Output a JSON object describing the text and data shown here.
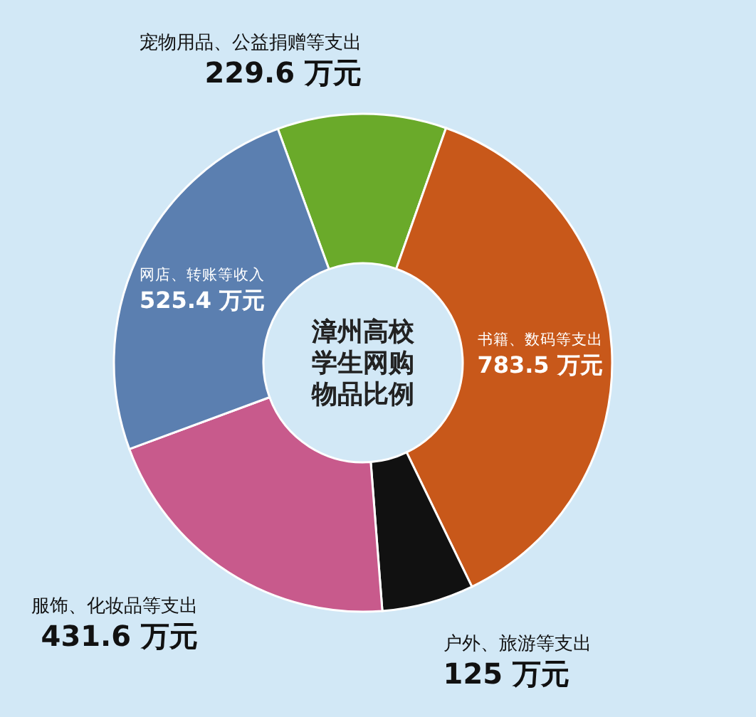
{
  "chart_data": {
    "type": "donut",
    "title": "漳州高校学生网购物品比例",
    "categories": [
      "宠物用品、公益捐赠等支出",
      "书籍、数码等支出",
      "户外、旅游等支出",
      "服饰、化妆品等支出",
      "网店、转账等收入"
    ],
    "values": [
      229.6,
      783.5,
      125,
      431.6,
      525.4
    ],
    "value_labels": [
      "229.6 万元",
      "783.5 万元",
      "125 万元",
      "431.6 万元",
      "525.4 万元"
    ],
    "colors": [
      "#6aaa2a",
      "#c8581a",
      "#111111",
      "#c85a8c",
      "#5b7fb0"
    ]
  }
}
